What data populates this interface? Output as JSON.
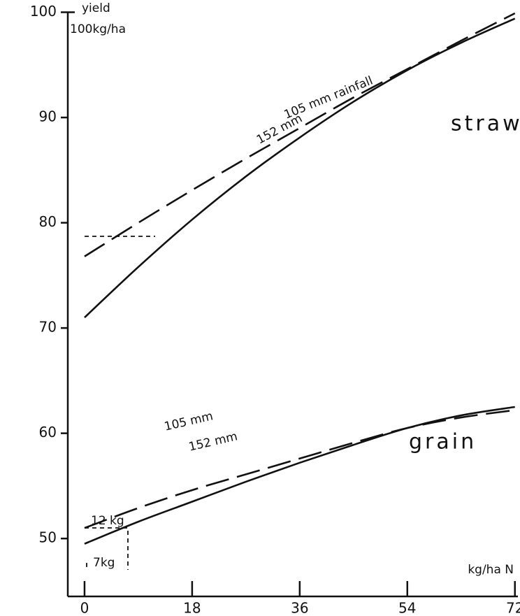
{
  "chart_data": {
    "type": "line",
    "y_label": [
      "yield",
      "100kg/ha"
    ],
    "x_label": "kg/ha N",
    "annotations": [
      "straw",
      "grain",
      "12 kg",
      "7kg"
    ],
    "x": [
      0,
      9,
      18,
      27,
      36,
      45,
      54,
      63,
      72
    ],
    "series": [
      {
        "name": "105 mm rainfall",
        "color": "#111111",
        "dash": true,
        "values": [
          76.8,
          80,
          83.1,
          86.1,
          89,
          91.9,
          94.6,
          97.3,
          99.9
        ]
      },
      {
        "name": "152 mm",
        "color": "#111111",
        "dash": false,
        "values": [
          71,
          75.8,
          80.3,
          84.4,
          88.1,
          91.5,
          94.5,
          97.1,
          99.4
        ]
      },
      {
        "name": "105 mm",
        "color": "#111111",
        "dash": true,
        "values": [
          51,
          52.9,
          54.6,
          56.1,
          57.6,
          59.1,
          60.5,
          61.5,
          62.2
        ]
      },
      {
        "name": "152 mm",
        "color": "#111111",
        "dash": false,
        "values": [
          49.5,
          51.6,
          53.5,
          55.4,
          57.2,
          58.9,
          60.5,
          61.7,
          62.5
        ]
      }
    ],
    "xlim": [
      -2.8,
      72.5
    ],
    "ylim": [
      44.5,
      100
    ],
    "xticks": [
      0,
      18,
      36,
      54,
      72
    ],
    "yticks": [
      50,
      60,
      70,
      80,
      90,
      100
    ],
    "grid": false
  }
}
